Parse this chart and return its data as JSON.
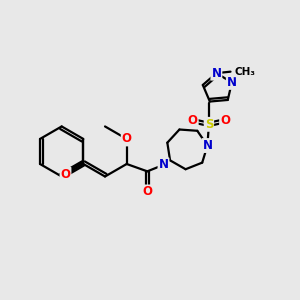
{
  "background_color": "#e8e8e8",
  "bond_color": "#000000",
  "bond_width": 1.6,
  "atom_colors": {
    "O": "#ff0000",
    "N": "#0000cc",
    "S": "#cccc00",
    "C": "#000000"
  },
  "font_size_atom": 8.5,
  "font_size_me": 7.5,
  "figsize": [
    3.0,
    3.0
  ],
  "dpi": 100
}
